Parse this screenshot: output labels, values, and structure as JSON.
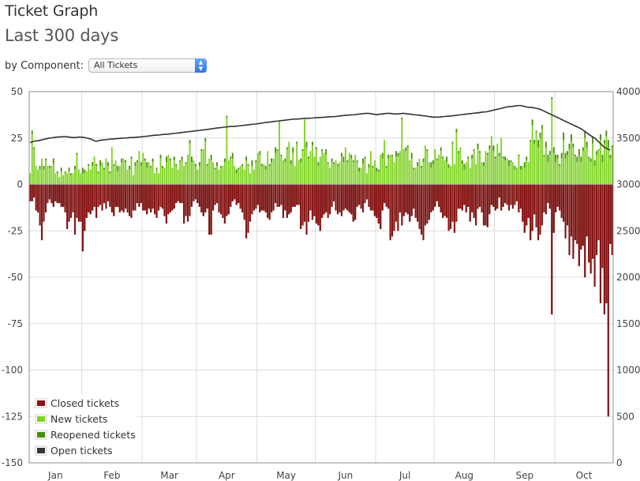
{
  "header": {
    "title": "Ticket Graph",
    "subtitle": "Last 300 days"
  },
  "filter": {
    "label": "by Component:",
    "selected": "All Tickets"
  },
  "colors": {
    "closed": "#8b0f0f",
    "new": "#7ed321",
    "reopened": "#4b8c12",
    "open": "#333333"
  },
  "chart_data": {
    "type": "bar",
    "grid": true,
    "legend_position": "bottom-left",
    "x_tick_labels": [
      "Jan",
      "Feb",
      "Mar",
      "Apr",
      "May",
      "Jun",
      "Jul",
      "Aug",
      "Sep",
      "Oct"
    ],
    "y_left": {
      "ticks": [
        50,
        25,
        0,
        -25,
        -50,
        -75,
        -100,
        -125,
        -150
      ],
      "range": [
        -150,
        50
      ]
    },
    "y_right": {
      "ticks": [
        4000,
        3500,
        3000,
        2500,
        2000,
        1500,
        1000,
        500,
        0
      ],
      "range": [
        0,
        4000
      ]
    },
    "days": 300,
    "series": [
      {
        "name": "Closed tickets",
        "axis": "left",
        "type": "bar",
        "color": "#8b0f0f",
        "values": [
          -9,
          -9,
          -7,
          -14,
          -15,
          -22,
          -30,
          -20,
          -15,
          -10,
          -8,
          -10,
          -12,
          -9,
          -10,
          -10,
          -12,
          -12,
          -15,
          -24,
          -20,
          -18,
          -15,
          -27,
          -18,
          -20,
          -20,
          -36,
          -25,
          -18,
          -15,
          -16,
          -14,
          -12,
          -18,
          -12,
          -11,
          -14,
          -10,
          -13,
          -9,
          -12,
          -15,
          -17,
          -12,
          -12,
          -15,
          -14,
          -15,
          -13,
          -15,
          -17,
          -18,
          -14,
          -14,
          -10,
          -12,
          -10,
          -14,
          -14,
          -16,
          -13,
          -15,
          -13,
          -16,
          -18,
          -14,
          -12,
          -13,
          -17,
          -21,
          -16,
          -15,
          -14,
          -13,
          -10,
          -9,
          -10,
          -10,
          -21,
          -17,
          -20,
          -17,
          -12,
          -9,
          -8,
          -10,
          -12,
          -15,
          -17,
          -15,
          -13,
          -27,
          -27,
          -14,
          -11,
          -10,
          -15,
          -16,
          -18,
          -21,
          -17,
          -16,
          -12,
          -9,
          -8,
          -11,
          -10,
          -13,
          -15,
          -19,
          -29,
          -26,
          -20,
          -16,
          -14,
          -13,
          -11,
          -15,
          -14,
          -14,
          -15,
          -18,
          -19,
          -15,
          -14,
          -10,
          -12,
          -12,
          -11,
          -18,
          -14,
          -18,
          -16,
          -15,
          -12,
          -12,
          -11,
          -11,
          -24,
          -22,
          -20,
          -27,
          -20,
          -14,
          -19,
          -17,
          -21,
          -22,
          -25,
          -18,
          -16,
          -15,
          -18,
          -16,
          -12,
          -9,
          -14,
          -16,
          -15,
          -17,
          -14,
          -13,
          -14,
          -15,
          -16,
          -20,
          -19,
          -12,
          -11,
          -13,
          -15,
          -10,
          -8,
          -12,
          -14,
          -14,
          -17,
          -18,
          -21,
          -24,
          -14,
          -10,
          -12,
          -13,
          -30,
          -28,
          -25,
          -20,
          -25,
          -15,
          -22,
          -17,
          -15,
          -16,
          -20,
          -17,
          -13,
          -18,
          -20,
          -24,
          -27,
          -30,
          -22,
          -21,
          -19,
          -15,
          -14,
          -12,
          -9,
          -12,
          -15,
          -18,
          -17,
          -18,
          -25,
          -24,
          -20,
          -26,
          -20,
          -13,
          -13,
          -14,
          -11,
          -15,
          -12,
          -20,
          -15,
          -18,
          -22,
          -13,
          -12,
          -15,
          -22,
          -22,
          -23,
          -16,
          -11,
          -12,
          -14,
          -13,
          -7,
          -14,
          -12,
          -10,
          -11,
          -14,
          -11,
          -13,
          -11,
          -9,
          -15,
          -13,
          -20,
          -26,
          -22,
          -18,
          -30,
          -25,
          -16,
          -23,
          -30,
          -27,
          -22,
          -15,
          -16,
          -10,
          -13,
          -70,
          -26,
          -15,
          -12,
          -14,
          -18,
          -20,
          -29,
          -22,
          -38,
          -28,
          -40,
          -30,
          -32,
          -44,
          -35,
          -33,
          -50,
          -28,
          -42,
          -48,
          -40,
          -55,
          -38,
          -30,
          -64,
          -45,
          -70,
          -64,
          -125,
          -32,
          -38,
          -48
        ]
      },
      {
        "name": "New tickets",
        "axis": "left",
        "type": "bar",
        "color": "#7ed321",
        "values": [
          6,
          27,
          19,
          10,
          8,
          8,
          14,
          8,
          13,
          10,
          9,
          10,
          11,
          6,
          6,
          4,
          7,
          5,
          6,
          6,
          7,
          5,
          6,
          8,
          16,
          8,
          6,
          6,
          6,
          7,
          10,
          8,
          10,
          15,
          10,
          6,
          10,
          12,
          8,
          14,
          10,
          6,
          20,
          10,
          13,
          7,
          10,
          12,
          14,
          12,
          8,
          8,
          14,
          5,
          10,
          12,
          18,
          10,
          17,
          13,
          9,
          12,
          9,
          12,
          6,
          8,
          6,
          14,
          9,
          9,
          12,
          16,
          13,
          9,
          13,
          10,
          8,
          12,
          13,
          10,
          11,
          16,
          22,
          12,
          13,
          10,
          8,
          10,
          18,
          19,
          23,
          10,
          14,
          13,
          12,
          8,
          10,
          8,
          9,
          10,
          12,
          36,
          13,
          14,
          14,
          10,
          6,
          8,
          10,
          10,
          8,
          13,
          10,
          6,
          10,
          8,
          12,
          17,
          16,
          10,
          11,
          8,
          18,
          10,
          12,
          14,
          17,
          18,
          34,
          15,
          13,
          12,
          19,
          23,
          11,
          17,
          10,
          22,
          13,
          12,
          18,
          35,
          20,
          14,
          18,
          21,
          15,
          19,
          10,
          15,
          18,
          17,
          16,
          11,
          9,
          12,
          11,
          13,
          10,
          12,
          15,
          12,
          20,
          12,
          17,
          14,
          12,
          16,
          12,
          7,
          9,
          11,
          14,
          6,
          9,
          18,
          9,
          13,
          7,
          7,
          16,
          14,
          24,
          9,
          14,
          16,
          15,
          12,
          15,
          15,
          18,
          35,
          19,
          18,
          20,
          13,
          14,
          8,
          9,
          10,
          14,
          9,
          12,
          21,
          18,
          12,
          9,
          11,
          19,
          13,
          16,
          18,
          14,
          13,
          12,
          9,
          10,
          22,
          11,
          28,
          17,
          20,
          11,
          8,
          12,
          14,
          9,
          14,
          18,
          11,
          19,
          17,
          12,
          10,
          18,
          16,
          19,
          26,
          18,
          14,
          22,
          15,
          25,
          14,
          13,
          14,
          10,
          12,
          12,
          8,
          9,
          15,
          8,
          10,
          9,
          13,
          12,
          23,
          32,
          22,
          28,
          20,
          25,
          30,
          15,
          20,
          12,
          16,
          46,
          17,
          12,
          14,
          10,
          14,
          24,
          14,
          16,
          19,
          23,
          20,
          15,
          12,
          15,
          12,
          18,
          25,
          20,
          14,
          12,
          22,
          10,
          16,
          18,
          24,
          12,
          22,
          26,
          20,
          14,
          20,
          18,
          12
        ]
      },
      {
        "name": "Reopened tickets",
        "axis": "left",
        "type": "bar",
        "color": "#4b8c12",
        "values": [
          0,
          2,
          1,
          0,
          0,
          2,
          0,
          2,
          1,
          0,
          1,
          0,
          3,
          0,
          1,
          0,
          2,
          0,
          1,
          0,
          2,
          1,
          0,
          2,
          1,
          0,
          0,
          3,
          2,
          0,
          1,
          0,
          2,
          0,
          1,
          1,
          3,
          0,
          1,
          0,
          2,
          1,
          0,
          1,
          0,
          3,
          0,
          2,
          0,
          1,
          0,
          2,
          1,
          0,
          2,
          1,
          0,
          2,
          0,
          1,
          3,
          0,
          1,
          2,
          0,
          1,
          0,
          2,
          1,
          0,
          3,
          0,
          1,
          0,
          2,
          1,
          0,
          1,
          2,
          0,
          1,
          0,
          2,
          3,
          0,
          1,
          0,
          2,
          1,
          0,
          2,
          1,
          0,
          3,
          0,
          1,
          2,
          0,
          1,
          0,
          2,
          1,
          0,
          1,
          3,
          0,
          2,
          1,
          0,
          1,
          0,
          2,
          1,
          0,
          3,
          0,
          1,
          0,
          2,
          1,
          0,
          2,
          0,
          1,
          2,
          0,
          3,
          1,
          0,
          1,
          0,
          2,
          1,
          0,
          2,
          3,
          0,
          1,
          0,
          2,
          1,
          0,
          3,
          1,
          0,
          2,
          0,
          1,
          2,
          0,
          1,
          0,
          3,
          1,
          0,
          2,
          1,
          0,
          1,
          0,
          2,
          3,
          0,
          1,
          0,
          2,
          1,
          0,
          1,
          2,
          0,
          3,
          1,
          0,
          2,
          0,
          1,
          0,
          2,
          1,
          0,
          3,
          0,
          1,
          2,
          0,
          1,
          0,
          3,
          2,
          0,
          1,
          0,
          2,
          1,
          0,
          3,
          1,
          0,
          2,
          0,
          1,
          2,
          0,
          1,
          0,
          3,
          2,
          0,
          1,
          0,
          2,
          1,
          0,
          3,
          2,
          0,
          1,
          0,
          2,
          1,
          0,
          2,
          3,
          0,
          1,
          0,
          2,
          1,
          0,
          3,
          1,
          0,
          2,
          0,
          1,
          2,
          0,
          3,
          1,
          0,
          2,
          0,
          1,
          2,
          0,
          3,
          1,
          0,
          2,
          0,
          1,
          2,
          0,
          3,
          2,
          0,
          1,
          3,
          2,
          1,
          4,
          3,
          2,
          1,
          3,
          4,
          2,
          1,
          3,
          4,
          2,
          1,
          3,
          4,
          3,
          2,
          3,
          4,
          2,
          1,
          3,
          4,
          3,
          2,
          4,
          3,
          1,
          2,
          4,
          3,
          2,
          1,
          3,
          4,
          2,
          3,
          4,
          2,
          1,
          3,
          4,
          2,
          1
        ]
      },
      {
        "name": "Open tickets",
        "axis": "right",
        "type": "line",
        "color": "#333333",
        "values": [
          3450,
          3460,
          3465,
          3470,
          3470,
          3475,
          3480,
          3485,
          3490,
          3495,
          3500,
          3502,
          3505,
          3508,
          3510,
          3512,
          3512,
          3515,
          3515,
          3513,
          3510,
          3508,
          3505,
          3505,
          3508,
          3510,
          3510,
          3508,
          3505,
          3500,
          3495,
          3490,
          3480,
          3470,
          3465,
          3470,
          3475,
          3478,
          3480,
          3482,
          3485,
          3488,
          3490,
          3490,
          3492,
          3495,
          3495,
          3498,
          3500,
          3500,
          3502,
          3505,
          3505,
          3505,
          3508,
          3510,
          3510,
          3512,
          3515,
          3518,
          3520,
          3522,
          3525,
          3528,
          3530,
          3530,
          3532,
          3535,
          3538,
          3540,
          3540,
          3542,
          3545,
          3548,
          3550,
          3552,
          3555,
          3558,
          3560,
          3562,
          3565,
          3568,
          3570,
          3572,
          3575,
          3578,
          3580,
          3582,
          3585,
          3588,
          3590,
          3592,
          3595,
          3600,
          3602,
          3605,
          3608,
          3610,
          3612,
          3615,
          3618,
          3620,
          3622,
          3625,
          3625,
          3625,
          3628,
          3630,
          3632,
          3635,
          3638,
          3640,
          3642,
          3645,
          3648,
          3650,
          3652,
          3655,
          3658,
          3660,
          3665,
          3668,
          3670,
          3672,
          3675,
          3678,
          3680,
          3682,
          3685,
          3688,
          3690,
          3692,
          3695,
          3698,
          3700,
          3702,
          3705,
          3705,
          3705,
          3708,
          3710,
          3712,
          3712,
          3712,
          3715,
          3715,
          3718,
          3720,
          3720,
          3722,
          3722,
          3725,
          3725,
          3728,
          3728,
          3730,
          3730,
          3732,
          3735,
          3738,
          3740,
          3742,
          3745,
          3745,
          3748,
          3748,
          3750,
          3752,
          3755,
          3758,
          3760,
          3762,
          3765,
          3765,
          3765,
          3762,
          3758,
          3755,
          3752,
          3755,
          3758,
          3760,
          3762,
          3765,
          3765,
          3765,
          3762,
          3760,
          3758,
          3760,
          3762,
          3765,
          3765,
          3762,
          3760,
          3758,
          3755,
          3752,
          3750,
          3748,
          3745,
          3742,
          3740,
          3738,
          3735,
          3730,
          3728,
          3725,
          3725,
          3725,
          3725,
          3728,
          3730,
          3732,
          3735,
          3735,
          3738,
          3740,
          3742,
          3745,
          3748,
          3750,
          3752,
          3755,
          3758,
          3760,
          3762,
          3765,
          3768,
          3770,
          3772,
          3775,
          3778,
          3780,
          3782,
          3785,
          3790,
          3795,
          3800,
          3805,
          3810,
          3815,
          3820,
          3825,
          3830,
          3835,
          3838,
          3840,
          3842,
          3845,
          3848,
          3850,
          3850,
          3845,
          3840,
          3835,
          3830,
          3830,
          3828,
          3825,
          3820,
          3815,
          3810,
          3800,
          3790,
          3780,
          3770,
          3760,
          3750,
          3740,
          3730,
          3720,
          3710,
          3700,
          3690,
          3680,
          3670,
          3660,
          3650,
          3640,
          3630,
          3620,
          3610,
          3600,
          3585,
          3570,
          3555,
          3540,
          3525,
          3510,
          3500,
          3480,
          3460,
          3440,
          3420,
          3400,
          3390,
          3380,
          3370
        ]
      }
    ]
  }
}
